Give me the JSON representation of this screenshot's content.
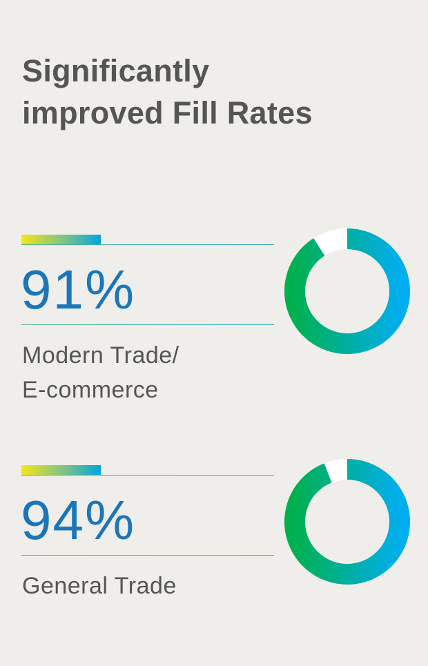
{
  "title_line1": "Significantly",
  "title_line2": "improved Fill Rates",
  "colors": {
    "background": "#f0eeea",
    "title": "#555555",
    "value": "#1976bc",
    "ring_start": "#00b04f",
    "ring_end": "#00aeef",
    "ring_remainder": "#ffffff"
  },
  "chart_data": [
    {
      "type": "pie",
      "style": "donut",
      "value_label": "91%",
      "label_line1": "Modern Trade/",
      "label_line2": "E-commerce",
      "values": [
        91,
        9
      ],
      "unit": "%"
    },
    {
      "type": "pie",
      "style": "donut",
      "value_label": "94%",
      "label_line1": "General Trade",
      "values": [
        94,
        6
      ],
      "unit": "%"
    }
  ]
}
